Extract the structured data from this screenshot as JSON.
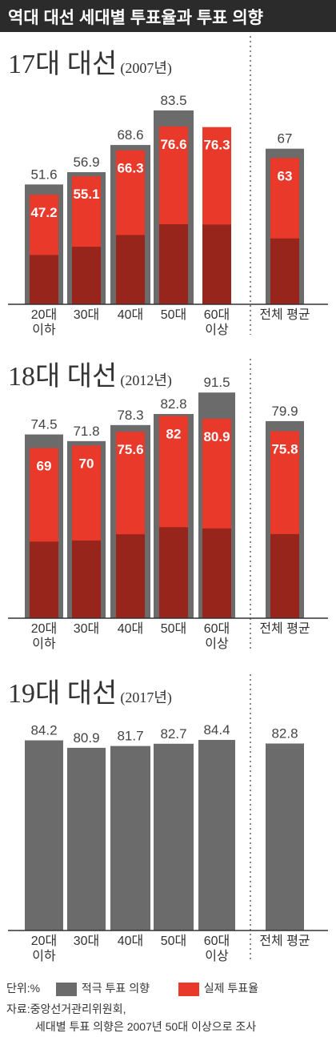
{
  "title": "역대 대선 세대별 투표율과 투표 의향",
  "colors": {
    "intent": "#6b6b6b",
    "actual": "#e8392a",
    "axis": "#333333",
    "divider": "#888888"
  },
  "chart_data": [
    {
      "type": "bar",
      "title_main": "17대 대선",
      "title_year": "(2007년)",
      "categories": [
        "20대|이하",
        "30대",
        "40대",
        "50대",
        "60대|이상",
        "전체 평균"
      ],
      "series": [
        {
          "name": "적극 투표 의향",
          "values": [
            51.6,
            56.9,
            68.6,
            83.5,
            null,
            67
          ]
        },
        {
          "name": "실제 투표율",
          "values": [
            47.2,
            55.1,
            66.3,
            76.6,
            76.3,
            63
          ]
        }
      ]
    },
    {
      "type": "bar",
      "title_main": "18대 대선",
      "title_year": "(2012년)",
      "categories": [
        "20대|이하",
        "30대",
        "40대",
        "50대",
        "60대|이상",
        "전체 평균"
      ],
      "series": [
        {
          "name": "적극 투표 의향",
          "values": [
            74.5,
            71.8,
            78.3,
            82.8,
            91.5,
            79.9
          ]
        },
        {
          "name": "실제 투표율",
          "values": [
            69,
            70,
            75.6,
            82,
            80.9,
            75.8
          ]
        }
      ]
    },
    {
      "type": "bar",
      "title_main": "19대 대선",
      "title_year": "(2017년)",
      "categories": [
        "20대|이하",
        "30대",
        "40대",
        "50대",
        "60대|이상",
        "전체 평균"
      ],
      "series": [
        {
          "name": "적극 투표 의향",
          "values": [
            84.2,
            80.9,
            81.7,
            82.7,
            84.4,
            82.8
          ]
        }
      ]
    }
  ],
  "footer": {
    "unit": "단위:%",
    "legend_intent": "적극 투표 의향",
    "legend_actual": "실제 투표율",
    "source_line1": "자료:중앙선거관리위원회,",
    "source_line2": "세대별 투표 의향은 2007년 50대 이상으로 조사"
  }
}
